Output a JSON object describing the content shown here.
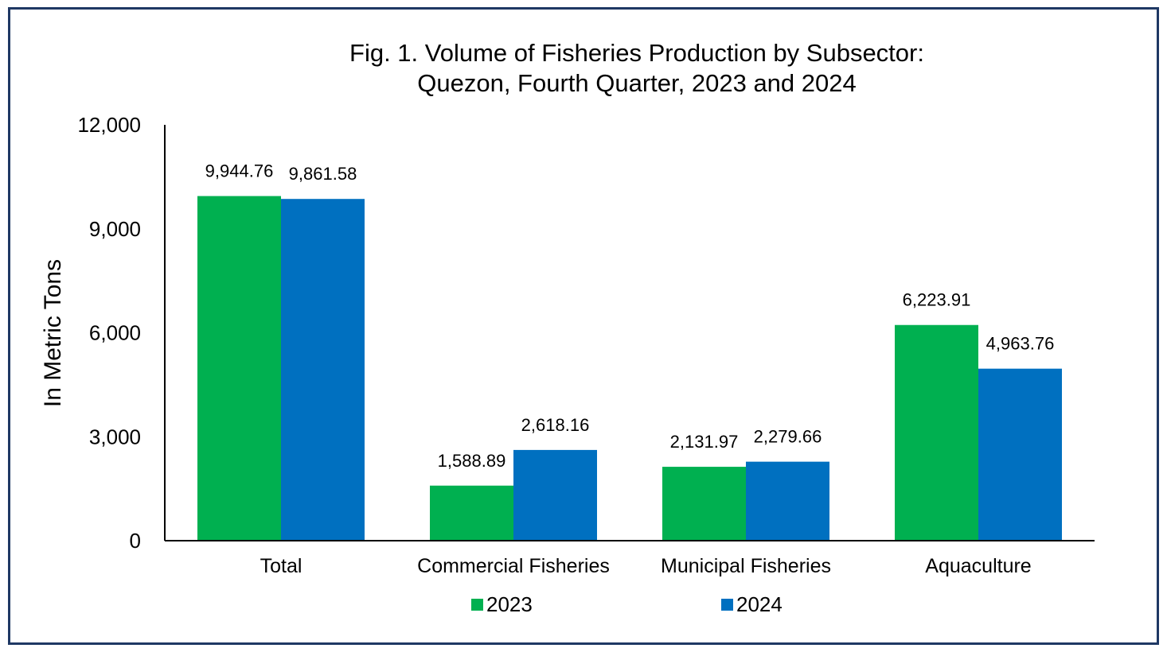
{
  "chart_data": {
    "type": "bar",
    "title": "Fig. 1. Volume of Fisheries Production by Subsector:",
    "subtitle": "Quezon, Fourth Quarter, 2023 and 2024",
    "ylabel": "In Metric Tons",
    "xlabel": "",
    "ylim": [
      0,
      12000
    ],
    "yticks": [
      0,
      3000,
      6000,
      9000,
      12000
    ],
    "ytick_labels": [
      "0",
      "3,000",
      "6,000",
      "9,000",
      "12,000"
    ],
    "categories": [
      "Total",
      "Commercial Fisheries",
      "Municipal Fisheries",
      "Aquaculture"
    ],
    "series": [
      {
        "name": "2023",
        "color": "#00b050",
        "values": [
          9944.76,
          1588.89,
          2131.97,
          6223.91
        ],
        "labels": [
          "9,944.76",
          "1,588.89",
          "2,131.97",
          "6,223.91"
        ]
      },
      {
        "name": "2024",
        "color": "#0070c0",
        "values": [
          9861.58,
          2618.16,
          2279.66,
          4963.76
        ],
        "labels": [
          "9,861.58",
          "2,618.16",
          "2,279.66",
          "4,963.76"
        ]
      }
    ],
    "grid": false,
    "legend_position": "bottom"
  }
}
